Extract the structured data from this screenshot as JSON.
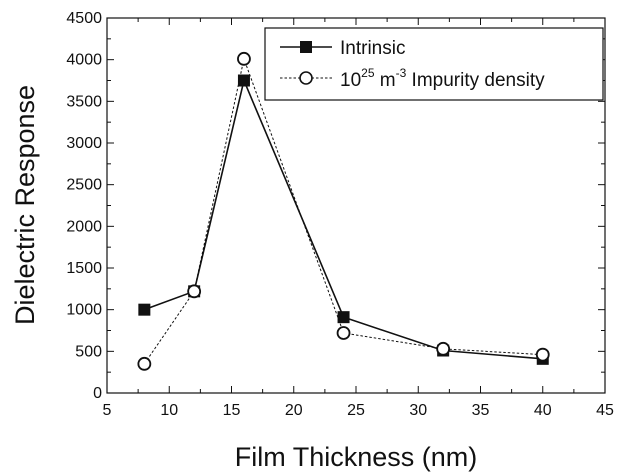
{
  "chart_data": {
    "type": "line",
    "xlabel": "Film Thickness (nm)",
    "ylabel": "Dielectric Response",
    "xlim": [
      5,
      45
    ],
    "ylim": [
      0,
      4500
    ],
    "xticks": [
      5,
      10,
      15,
      20,
      25,
      30,
      35,
      40,
      45
    ],
    "yticks": [
      0,
      500,
      1000,
      1500,
      2000,
      2500,
      3000,
      3500,
      4000,
      4500
    ],
    "legend_position": "top-right",
    "series": [
      {
        "name": "Intrinsic",
        "x": [
          8,
          12,
          16,
          24,
          32,
          40
        ],
        "y": [
          1000,
          1220,
          3750,
          910,
          510,
          410
        ],
        "marker": "filled-square",
        "line_style": "solid",
        "color": "#111111"
      },
      {
        "name": "10^25 m^-3 Impurity density",
        "x": [
          8,
          12,
          16,
          24,
          32,
          40
        ],
        "y": [
          350,
          1220,
          4010,
          720,
          530,
          460
        ],
        "marker": "open-circle",
        "line_style": "dashed",
        "color": "#111111"
      }
    ],
    "legend": {
      "intrinsic": "Intrinsic",
      "impurity_base": "10",
      "impurity_exp": "25",
      "impurity_unit": " m",
      "impurity_unit_exp": "-3",
      "impurity_rest": " Impurity density"
    }
  }
}
